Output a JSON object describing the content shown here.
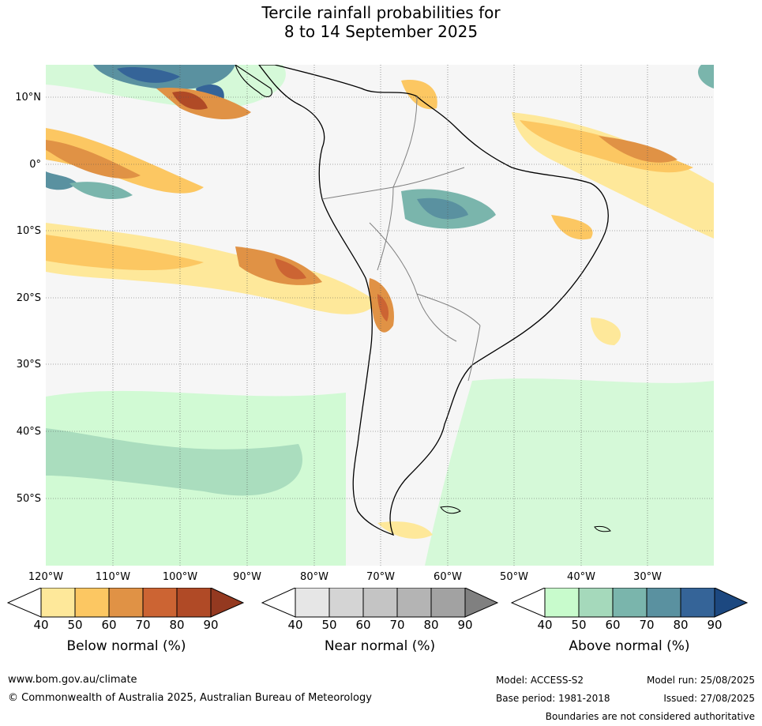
{
  "title": {
    "line1": "Tercile rainfall probabilities for",
    "line2": "8 to 14 September 2025"
  },
  "map": {
    "lat_labels": [
      "10°N",
      "0°",
      "10°S",
      "20°S",
      "30°S",
      "40°S",
      "50°S"
    ],
    "lon_labels": [
      "120°W",
      "110°W",
      "100°W",
      "90°W",
      "80°W",
      "70°W",
      "60°W",
      "50°W",
      "40°W",
      "30°W"
    ]
  },
  "colorbars": [
    {
      "title": "Below normal (%)",
      "ticks": [
        "40",
        "50",
        "60",
        "70",
        "80",
        "90"
      ],
      "colors": [
        "#ffffff",
        "#fee89a",
        "#fcc762",
        "#e09245",
        "#cc6433",
        "#b04a26",
        "#943920"
      ]
    },
    {
      "title": "Near normal (%)",
      "ticks": [
        "40",
        "50",
        "60",
        "70",
        "80",
        "90"
      ],
      "colors": [
        "#ffffff",
        "#e6e6e6",
        "#d4d4d4",
        "#c4c4c4",
        "#b4b4b4",
        "#a2a2a2",
        "#808080"
      ]
    },
    {
      "title": "Above normal (%)",
      "ticks": [
        "40",
        "50",
        "60",
        "70",
        "80",
        "90"
      ],
      "colors": [
        "#ffffff",
        "#c8fbcc",
        "#a5d9bb",
        "#7ab5ac",
        "#5a91a0",
        "#356498",
        "#1c4880"
      ]
    }
  ],
  "footer": {
    "website": "www.bom.gov.au/climate",
    "copyright": "© Commonwealth of Australia 2025, Australian Bureau of Meteorology",
    "model": "Model: ACCESS-S2",
    "base_period": "Base period: 1981-2018",
    "model_run": "Model run: 25/08/2025",
    "issued": "Issued: 27/08/2025",
    "disclaimer": "Boundaries are not considered authoritative"
  }
}
